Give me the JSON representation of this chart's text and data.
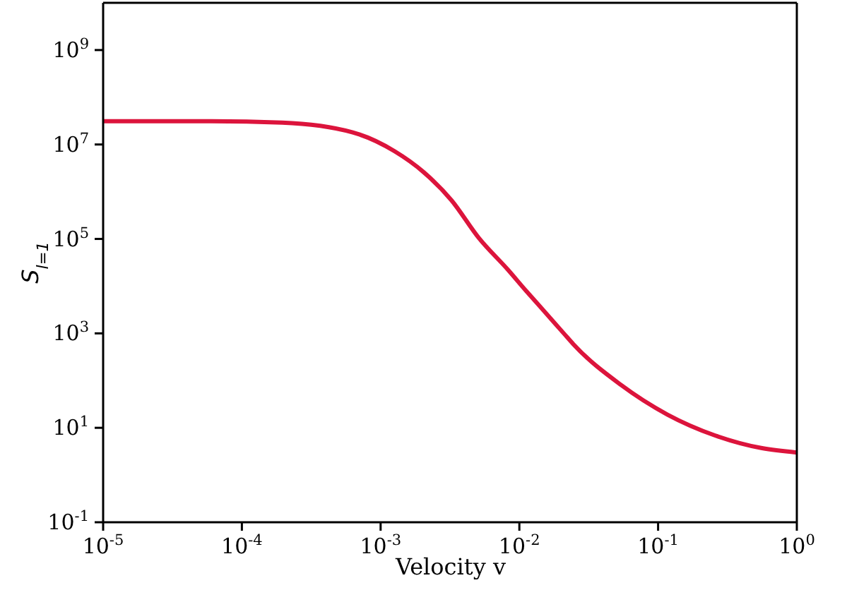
{
  "chart_data": {
    "type": "line",
    "xlabel": "Velocity v",
    "ylabel": "S$_{l=1}$",
    "log": "xy",
    "grid": false,
    "legend": false,
    "marker": "none",
    "line_style": "solid",
    "x": [
      1e-05,
      6e-05,
      0.000195,
      0.00063,
      0.00126,
      0.00204,
      0.00324,
      0.0051,
      0.0083,
      0.0112,
      0.0132,
      0.0209,
      0.0245,
      0.054,
      0.117,
      0.257,
      0.562,
      1
    ],
    "series": [
      {
        "color": "#dc143c",
        "values": [
          31000000.0,
          31000000.0,
          29000000.0,
          18000000.0,
          7200000.0,
          2600000.0,
          660000.0,
          105000.0,
          22000.0,
          7900.0,
          4600.0,
          1000.0,
          590,
          81,
          19,
          6.9,
          3.7,
          3.0
        ]
      }
    ],
    "xlim": [
      1e-05,
      1
    ],
    "xticks": [
      {
        "value": 1e-05,
        "label": "10$^{-5}$"
      },
      {
        "value": 0.0001,
        "label": "10$^{-4}$"
      },
      {
        "value": 0.001,
        "label": "10$^{-3}$"
      },
      {
        "value": 0.01,
        "label": "10$^{-2}$"
      },
      {
        "value": 0.1,
        "label": "10$^{-1}$"
      },
      {
        "value": 1,
        "label": "10$^{0}$"
      }
    ],
    "ylim": [
      0.1,
      10000000000.0
    ],
    "yticks": [
      {
        "value": 0.1,
        "label": "10$^{-1}$"
      },
      {
        "value": 10,
        "label": "10$^{1}$"
      },
      {
        "value": 1000,
        "label": "10$^{3}$"
      },
      {
        "value": 100000,
        "label": "10$^{5}$"
      },
      {
        "value": 10000000.0,
        "label": "10$^{7}$"
      },
      {
        "value": 1000000000.0,
        "label": "10$^{9}$"
      }
    ]
  }
}
